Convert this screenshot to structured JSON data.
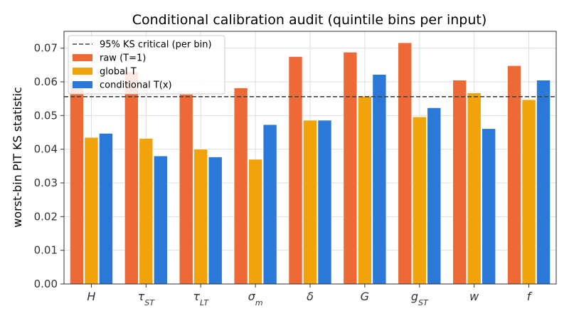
{
  "chart_data": {
    "type": "bar",
    "title": "Conditional calibration audit (quintile bins per input)",
    "xlabel": "",
    "ylabel": "worst-bin PIT KS statistic",
    "ylim": [
      0,
      0.075
    ],
    "yticks": [
      0.0,
      0.01,
      0.02,
      0.03,
      0.04,
      0.05,
      0.06,
      0.07
    ],
    "ytick_labels": [
      "0.00",
      "0.01",
      "0.02",
      "0.03",
      "0.04",
      "0.05",
      "0.06",
      "0.07"
    ],
    "categories": [
      {
        "base": "H",
        "sub": ""
      },
      {
        "base": "τ",
        "sub": "ST"
      },
      {
        "base": "τ",
        "sub": "LT"
      },
      {
        "base": "σ",
        "sub": "m"
      },
      {
        "base": "δ",
        "sub": ""
      },
      {
        "base": "G",
        "sub": ""
      },
      {
        "base": "g",
        "sub": "ST"
      },
      {
        "base": "w",
        "sub": ""
      },
      {
        "base": "f",
        "sub": ""
      }
    ],
    "series": [
      {
        "name": "raw (T=1)",
        "color": "#ed6a37",
        "values": [
          0.06,
          0.063,
          0.0563,
          0.0582,
          0.0675,
          0.0688,
          0.0716,
          0.0605,
          0.0648
        ]
      },
      {
        "name": "global T",
        "color": "#f0a30a",
        "values": [
          0.0435,
          0.0432,
          0.04,
          0.037,
          0.0486,
          0.0557,
          0.0496,
          0.0567,
          0.0547
        ]
      },
      {
        "name": "conditional T(x)",
        "color": "#2a78d8",
        "values": [
          0.0447,
          0.038,
          0.0377,
          0.0473,
          0.0486,
          0.0622,
          0.0523,
          0.0461,
          0.0605
        ]
      }
    ],
    "reference_line": {
      "name": "95% KS critical (per bin)",
      "value": 0.0556,
      "style": "dashed",
      "color": "#444444"
    },
    "legend_position": "upper-left",
    "grid": true
  }
}
